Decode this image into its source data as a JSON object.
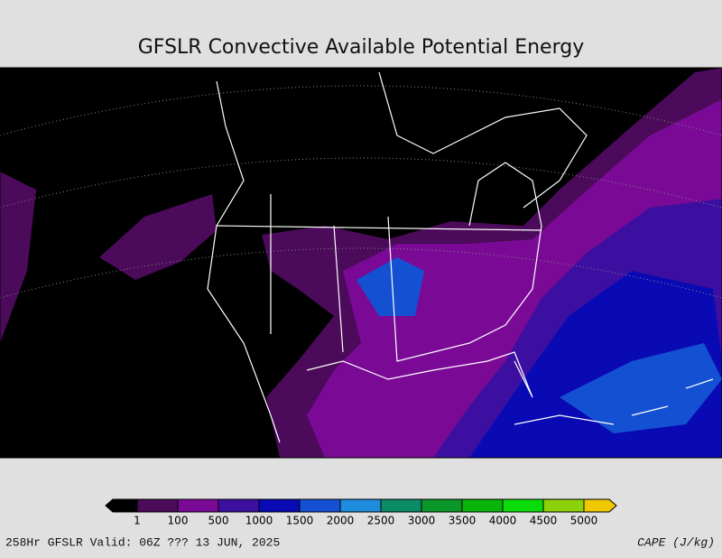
{
  "header": {
    "title": "GFSLR Convective Available Potential Energy"
  },
  "legend": {
    "levels": [
      1,
      100,
      500,
      1000,
      1500,
      2000,
      2500,
      3000,
      3500,
      4000,
      4500,
      5000
    ],
    "colors": [
      "#000000",
      "#4b0a5a",
      "#7a0a96",
      "#3c0fa0",
      "#0a0ab4",
      "#1450d2",
      "#1e8cdc",
      "#0a8c64",
      "#0a9628",
      "#0ab40a",
      "#0adc0a",
      "#8cd20a",
      "#f0c800"
    ]
  },
  "footer": {
    "valid": "258Hr GFSLR Valid: 06Z ??? 13 JUN, 2025",
    "units": "CAPE (J/kg)"
  }
}
